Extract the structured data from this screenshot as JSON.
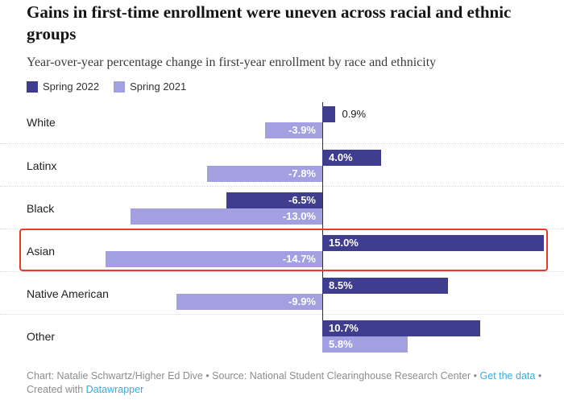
{
  "header": {
    "title": "Gains in first-time enrollment were uneven across racial and ethnic groups",
    "subtitle": "Year-over-year percentage change in first-year enrollment by race and ethnicity"
  },
  "chart_data": {
    "type": "bar",
    "orientation": "horizontal",
    "diverging": true,
    "title": "Gains in first-time enrollment were uneven across racial and ethnic groups",
    "subtitle": "Year-over-year percentage change in first-year enrollment by race and ethnicity",
    "categories": [
      "White",
      "Latinx",
      "Black",
      "Asian",
      "Native American",
      "Other"
    ],
    "series": [
      {
        "key": "spring-2022",
        "name": "Spring 2022",
        "color": "#3f3d8e",
        "values": [
          0.9,
          4.0,
          -6.5,
          15.0,
          8.5,
          10.7
        ],
        "labels": [
          "0.9%",
          "4.0%",
          "-6.5%",
          "15.0%",
          "8.5%",
          "10.7%"
        ]
      },
      {
        "key": "spring-2021",
        "name": "Spring 2021",
        "color": "#a2a0e1",
        "values": [
          -3.9,
          -7.8,
          -13.0,
          -14.7,
          -9.9,
          5.8
        ],
        "labels": [
          "-3.9%",
          "-7.8%",
          "-13.0%",
          "-14.7%",
          "-9.9%",
          "5.8%"
        ]
      }
    ],
    "xlabel": "",
    "ylabel": "",
    "xlim": [
      -21.8,
      16.4
    ],
    "grid": false,
    "zero_line": true,
    "legend_position": "top-left",
    "highlight": {
      "category": "Asian",
      "color": "#e8392d"
    }
  },
  "footer": {
    "credit_source": "Chart: Natalie Schwartz/Higher Ed Dive • Source: National Student Clearinghouse Research Center •",
    "get_data_label": "Get the data",
    "bullet": "•",
    "created_with": "Created with",
    "datawrapper_label": "Datawrapper",
    "link_color": "#3aabdc",
    "text_color": "#8e8e8e"
  }
}
